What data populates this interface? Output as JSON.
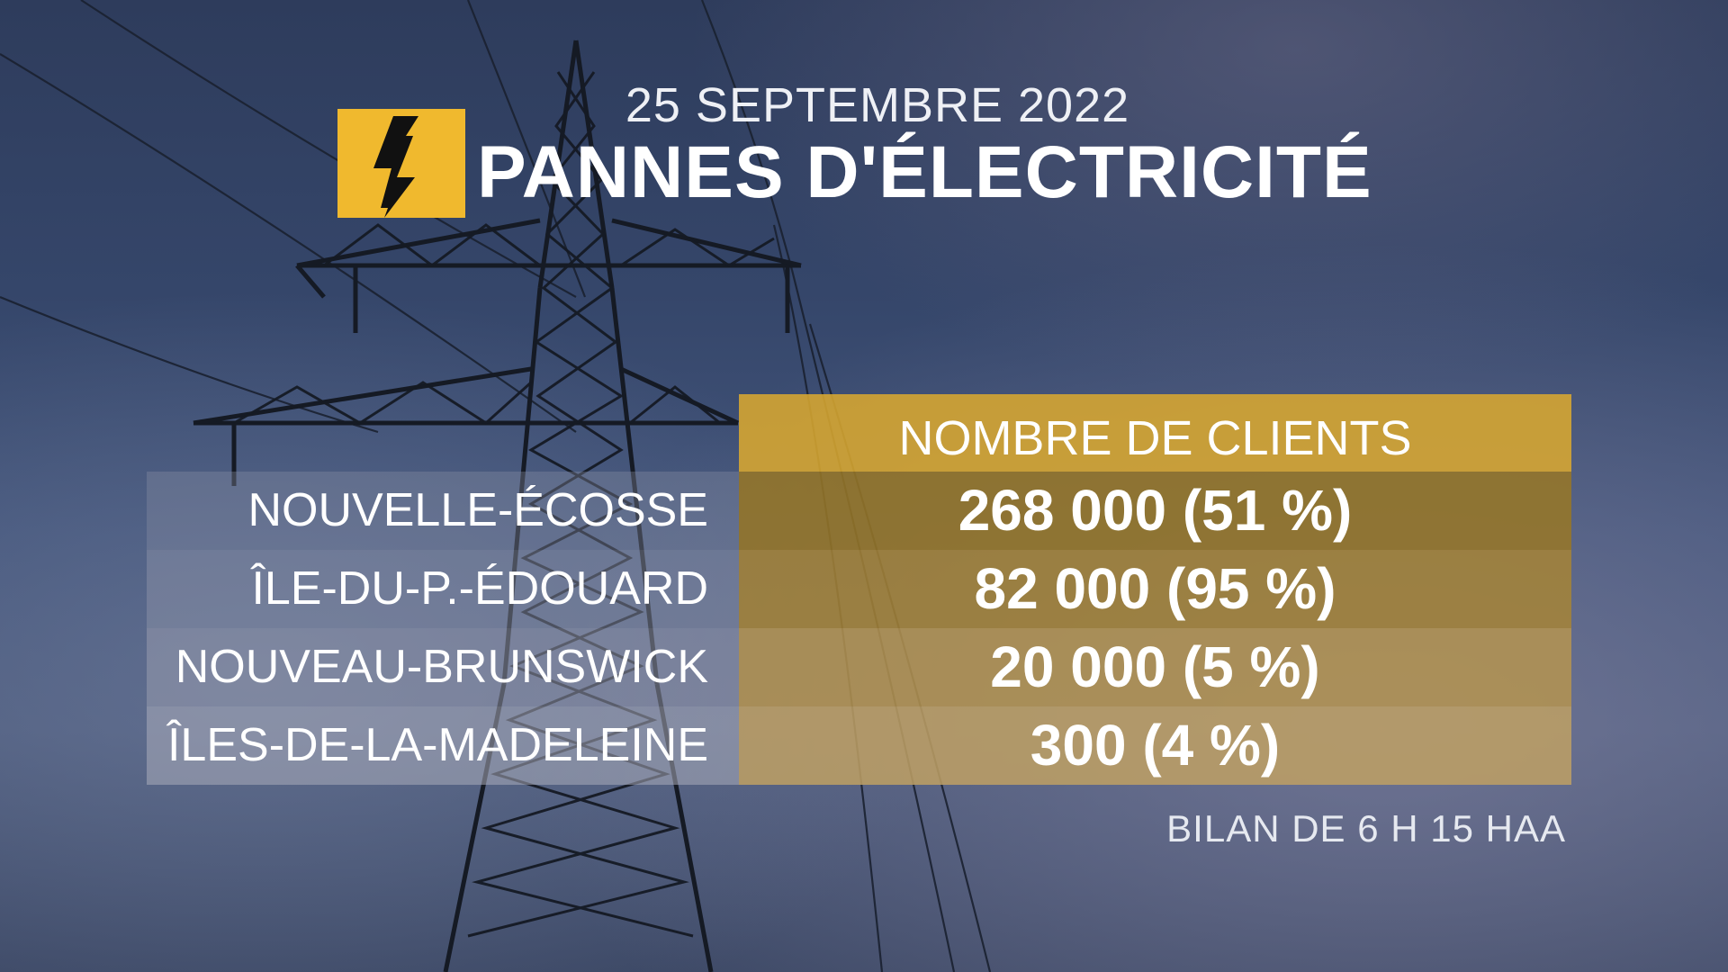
{
  "header": {
    "date": "25 SEPTEMBRE 2022",
    "title": "PANNES D'ÉLECTRICITÉ",
    "icon": "lightning-bolt-icon"
  },
  "table": {
    "column_header": "NOMBRE DE CLIENTS",
    "rows": [
      {
        "region": "NOUVELLE-ÉCOSSE",
        "value": "268 000 (51 %)"
      },
      {
        "region": "ÎLE-DU-P.-ÉDOUARD",
        "value": "82 000 (95 %)"
      },
      {
        "region": "NOUVEAU-BRUNSWICK",
        "value": "20 000 (5 %)"
      },
      {
        "region": "ÎLES-DE-LA-MADELEINE",
        "value": "300 (4 %)"
      }
    ]
  },
  "footnote": "BILAN DE 6 H 15 HAA",
  "colors": {
    "accent": "#f0b92e",
    "sky": "#3a4a6c"
  }
}
